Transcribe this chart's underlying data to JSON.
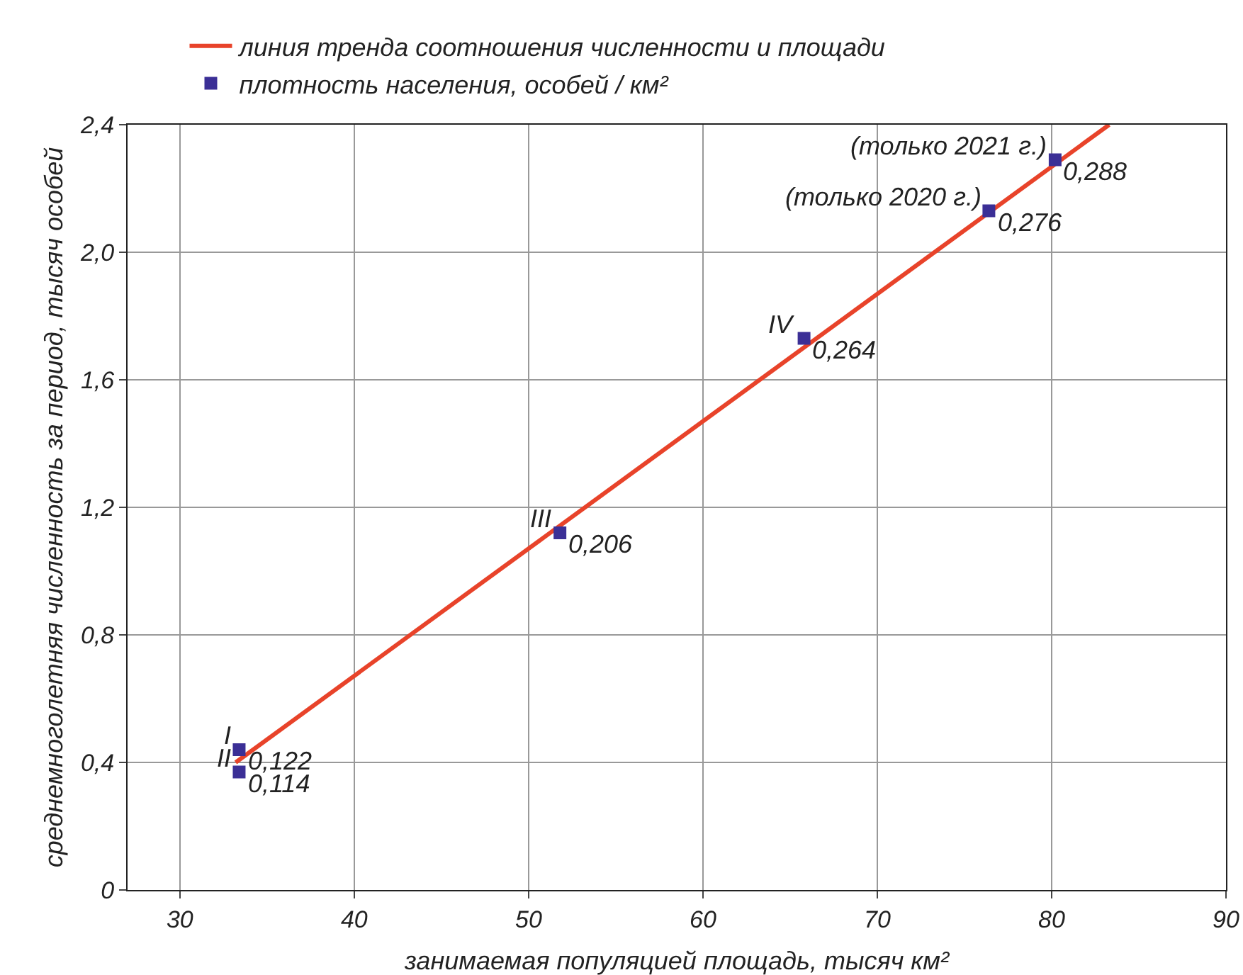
{
  "chart_data": {
    "type": "scatter",
    "xlabel": "занимаемая популяцией площадь, тысяч км²",
    "ylabel": "среднемноголетняя численность за период, тысяч особей",
    "xlim": [
      27,
      90
    ],
    "xticks": [
      30,
      40,
      50,
      60,
      70,
      80,
      90
    ],
    "ylim": [
      0,
      2.4
    ],
    "yticks": [
      0,
      {
        "value": 0.4,
        "label": "0,4"
      },
      {
        "value": 0.8,
        "label": "0,8"
      },
      {
        "value": 1.2,
        "label": "1,2"
      },
      {
        "value": 1.6,
        "label": "1,6"
      },
      {
        "value": 2.0,
        "label": "2,0"
      },
      {
        "value": 2.4,
        "label": "2,4"
      }
    ],
    "grid": true,
    "legend": "top left",
    "marker": "square",
    "series": [
      {
        "name": "линия тренда соотношения численности и площади",
        "type": "line",
        "color": "#e8432a",
        "line_style": "solid",
        "marker": "none",
        "x": [
          33.2,
          83.3
        ],
        "values": [
          0.4,
          2.4
        ]
      },
      {
        "name": "плотность населения, особей / км²",
        "color": "#3b2f96",
        "x": [
          33.4,
          33.4,
          51.8,
          65.8,
          76.4,
          80.2
        ],
        "values": [
          0.44,
          0.37,
          1.12,
          1.73,
          2.13,
          2.29
        ]
      }
    ],
    "annotations": [
      {
        "text": "I",
        "x": 33.4,
        "y": 0.44
      },
      {
        "text": "II",
        "x": 33.4,
        "y": 0.37
      },
      {
        "text": "III",
        "x": 51.8,
        "y": 1.12
      },
      {
        "text": "IV",
        "x": 65.8,
        "y": 1.73
      },
      {
        "text": "(только 2020 г.)",
        "x": 76.4,
        "y": 2.13
      },
      {
        "text": "(только 2021 г.)",
        "x": 80.2,
        "y": 2.29
      },
      {
        "text": "0,122",
        "x": 33.4,
        "y": 0.44
      },
      {
        "text": "0,114",
        "x": 33.4,
        "y": 0.37
      },
      {
        "text": "0,206",
        "x": 51.8,
        "y": 1.12
      },
      {
        "text": "0,264",
        "x": 65.8,
        "y": 1.73
      },
      {
        "text": "0,276",
        "x": 76.4,
        "y": 2.13
      },
      {
        "text": "0,288",
        "x": 80.2,
        "y": 2.29
      }
    ]
  }
}
